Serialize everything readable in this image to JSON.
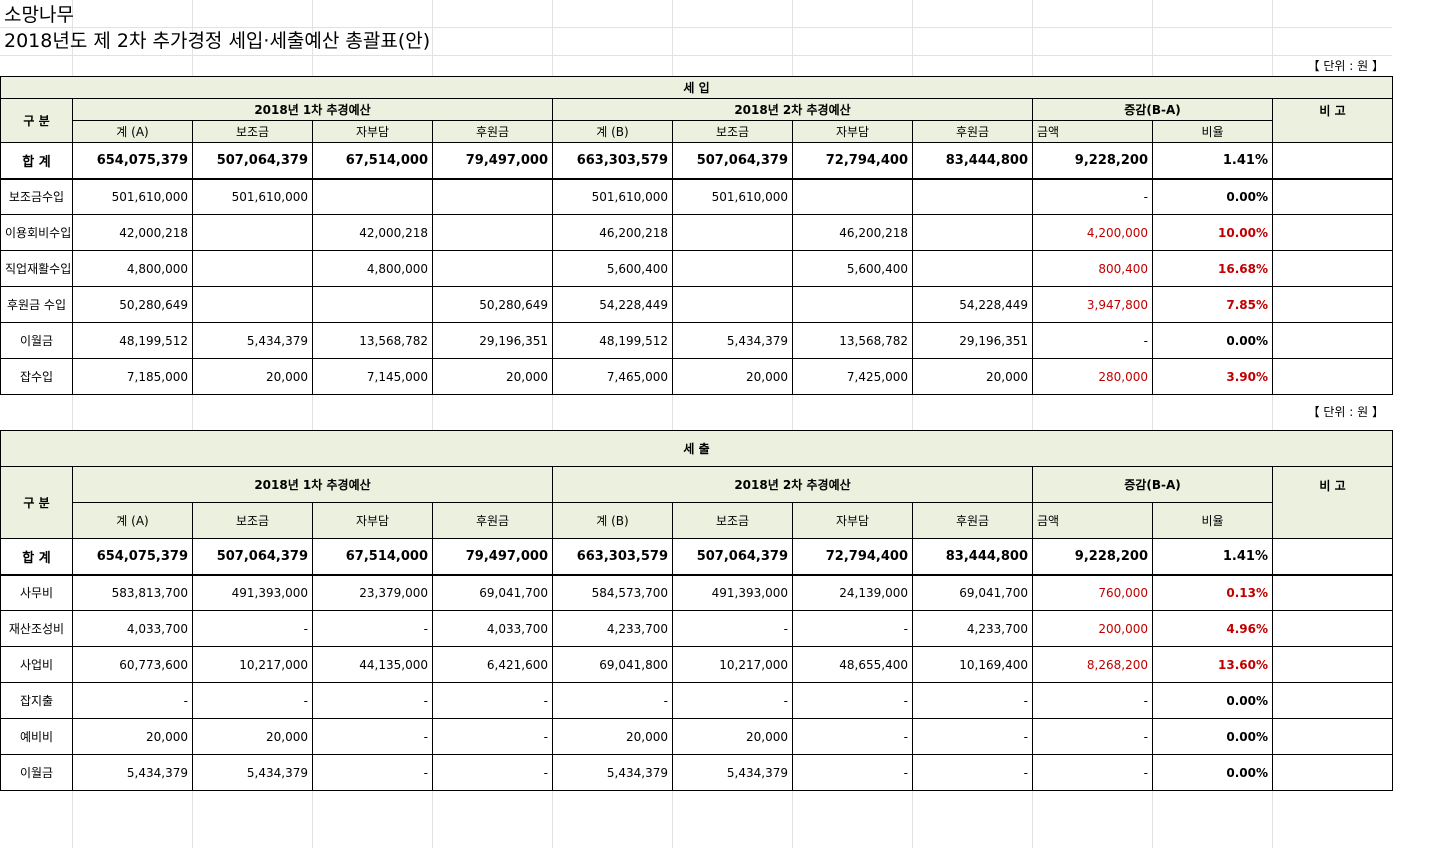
{
  "org_name": "소망나무",
  "doc_title": "2018년도 제 2차 추가경정 세입·세출예산 총괄표(안)",
  "unit_note": "【 단위 : 원 】",
  "headers": {
    "category": "구    분",
    "first_budget": "2018년 1차 추경예산",
    "second_budget": "2018년 2차 추경예산",
    "diff": "증감(B-A)",
    "remarks": "비  고",
    "sum_a": "계 (A)",
    "sum_b": "계 (B)",
    "subsidy": "보조금",
    "self_pay": "자부담",
    "donation": "후원금",
    "amount": "금액",
    "ratio": "비율"
  },
  "revenue": {
    "section_title": "세            입",
    "total": {
      "label": "합    계",
      "a": "654,075,379",
      "a_subsidy": "507,064,379",
      "a_self": "67,514,000",
      "a_donation": "79,497,000",
      "b": "663,303,579",
      "b_subsidy": "507,064,379",
      "b_self": "72,794,400",
      "b_donation": "83,444,800",
      "amount": "9,228,200",
      "ratio": "1.41%"
    },
    "rows": [
      {
        "label": "보조금수입",
        "a": "501,610,000",
        "a_subsidy": "501,610,000",
        "a_self": "",
        "a_donation": "",
        "b": "501,610,000",
        "b_subsidy": "501,610,000",
        "b_self": "",
        "b_donation": "",
        "amount": "-",
        "ratio": "0.00%",
        "red": false
      },
      {
        "label": "이용회비수입",
        "a": "42,000,218",
        "a_subsidy": "",
        "a_self": "42,000,218",
        "a_donation": "",
        "b": "46,200,218",
        "b_subsidy": "",
        "b_self": "46,200,218",
        "b_donation": "",
        "amount": "4,200,000",
        "ratio": "10.00%",
        "red": true
      },
      {
        "label": "직업재활수입",
        "a": "4,800,000",
        "a_subsidy": "",
        "a_self": "4,800,000",
        "a_donation": "",
        "b": "5,600,400",
        "b_subsidy": "",
        "b_self": "5,600,400",
        "b_donation": "",
        "amount": "800,400",
        "ratio": "16.68%",
        "red": true
      },
      {
        "label": "후원금 수입",
        "a": "50,280,649",
        "a_subsidy": "",
        "a_self": "",
        "a_donation": "50,280,649",
        "b": "54,228,449",
        "b_subsidy": "",
        "b_self": "",
        "b_donation": "54,228,449",
        "amount": "3,947,800",
        "ratio": "7.85%",
        "red": true
      },
      {
        "label": "이월금",
        "a": "48,199,512",
        "a_subsidy": "5,434,379",
        "a_self": "13,568,782",
        "a_donation": "29,196,351",
        "b": "48,199,512",
        "b_subsidy": "5,434,379",
        "b_self": "13,568,782",
        "b_donation": "29,196,351",
        "amount": "-",
        "ratio": "0.00%",
        "red": false
      },
      {
        "label": "잡수입",
        "a": "7,185,000",
        "a_subsidy": "20,000",
        "a_self": "7,145,000",
        "a_donation": "20,000",
        "b": "7,465,000",
        "b_subsidy": "20,000",
        "b_self": "7,425,000",
        "b_donation": "20,000",
        "amount": "280,000",
        "ratio": "3.90%",
        "red": true
      }
    ]
  },
  "expense": {
    "section_title": "세            출",
    "total": {
      "label": "합    계",
      "a": "654,075,379",
      "a_subsidy": "507,064,379",
      "a_self": "67,514,000",
      "a_donation": "79,497,000",
      "b": "663,303,579",
      "b_subsidy": "507,064,379",
      "b_self": "72,794,400",
      "b_donation": "83,444,800",
      "amount": "9,228,200",
      "ratio": "1.41%"
    },
    "rows": [
      {
        "label": "사무비",
        "a": "583,813,700",
        "a_subsidy": "491,393,000",
        "a_self": "23,379,000",
        "a_donation": "69,041,700",
        "b": "584,573,700",
        "b_subsidy": "491,393,000",
        "b_self": "24,139,000",
        "b_donation": "69,041,700",
        "amount": "760,000",
        "ratio": "0.13%",
        "red": true
      },
      {
        "label": "재산조성비",
        "a": "4,033,700",
        "a_subsidy": "-",
        "a_self": "-",
        "a_donation": "4,033,700",
        "b": "4,233,700",
        "b_subsidy": "-",
        "b_self": "-",
        "b_donation": "4,233,700",
        "amount": "200,000",
        "ratio": "4.96%",
        "red": true
      },
      {
        "label": "사업비",
        "a": "60,773,600",
        "a_subsidy": "10,217,000",
        "a_self": "44,135,000",
        "a_donation": "6,421,600",
        "b": "69,041,800",
        "b_subsidy": "10,217,000",
        "b_self": "48,655,400",
        "b_donation": "10,169,400",
        "amount": "8,268,200",
        "ratio": "13.60%",
        "red": true
      },
      {
        "label": "잡지출",
        "a": "-",
        "a_subsidy": "-",
        "a_self": "-",
        "a_donation": "-",
        "b": "-",
        "b_subsidy": "-",
        "b_self": "-",
        "b_donation": "-",
        "amount": "-",
        "ratio": "0.00%",
        "red": false
      },
      {
        "label": "예비비",
        "a": "20,000",
        "a_subsidy": "20,000",
        "a_self": "-",
        "a_donation": "-",
        "b": "20,000",
        "b_subsidy": "20,000",
        "b_self": "-",
        "b_donation": "-",
        "amount": "-",
        "ratio": "0.00%",
        "red": false
      },
      {
        "label": "이월금",
        "a": "5,434,379",
        "a_subsidy": "5,434,379",
        "a_self": "-",
        "a_donation": "-",
        "b": "5,434,379",
        "b_subsidy": "5,434,379",
        "b_self": "-",
        "b_donation": "-",
        "amount": "-",
        "ratio": "0.00%",
        "red": false
      }
    ]
  }
}
